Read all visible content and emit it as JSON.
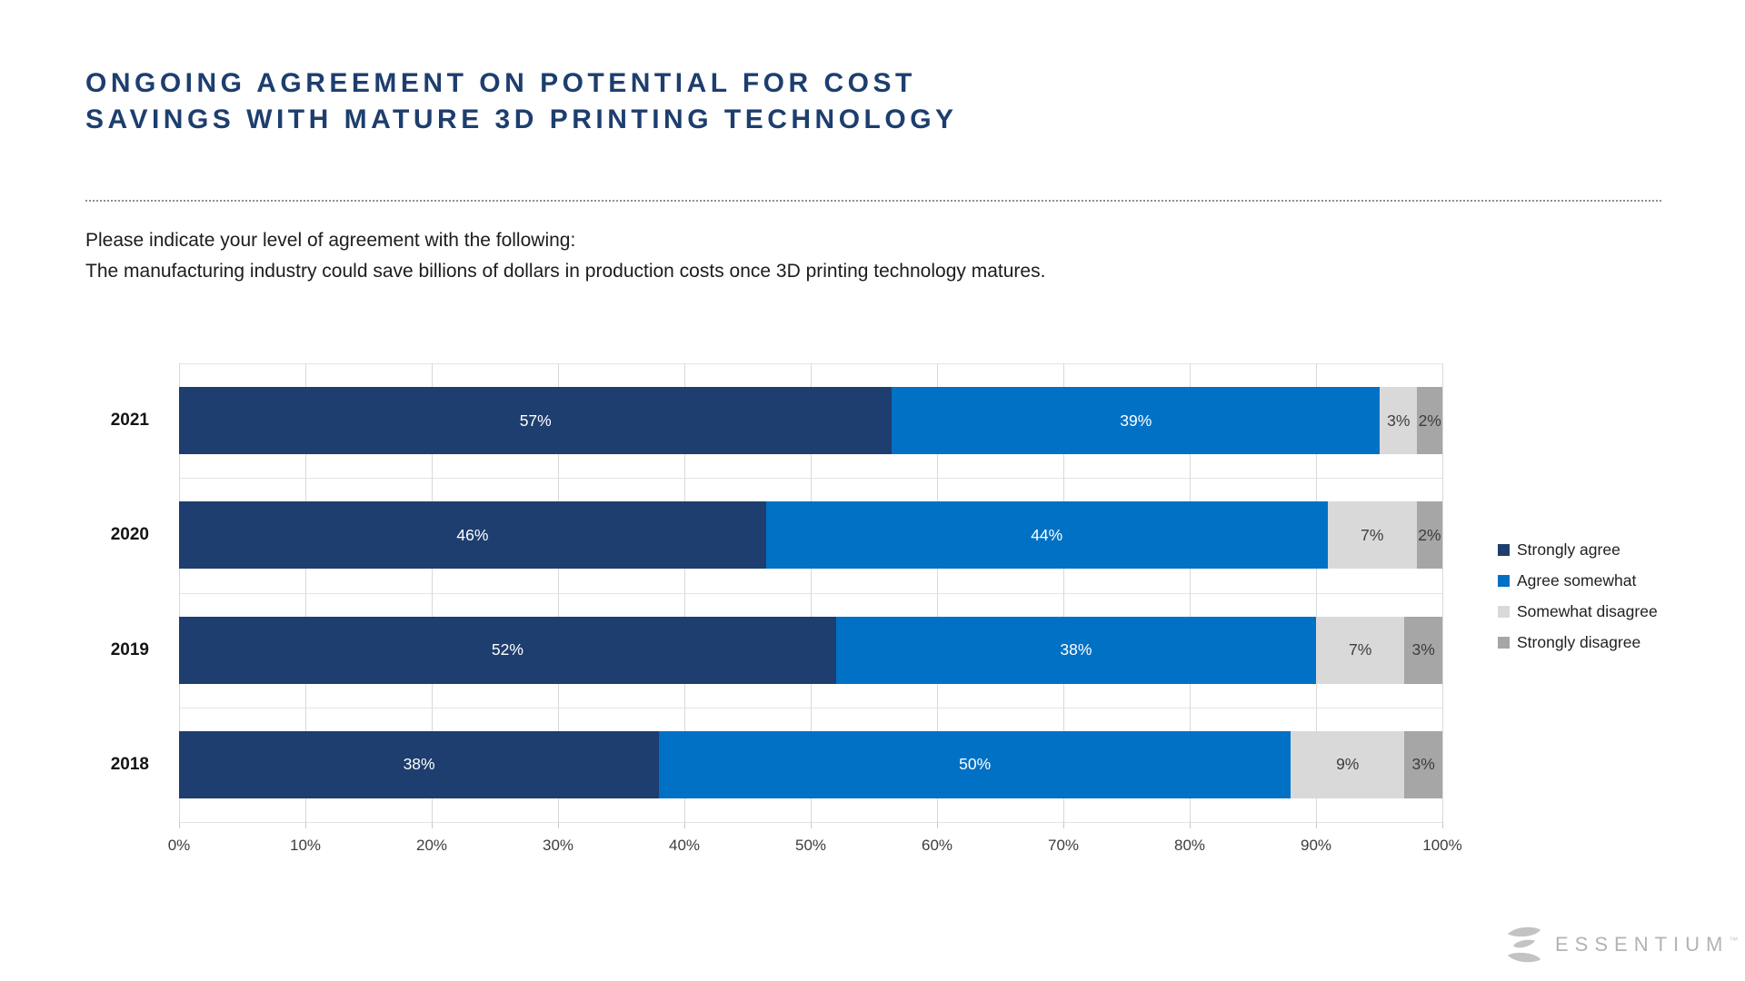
{
  "page": {
    "title_line1": "ONGOING AGREEMENT ON POTENTIAL FOR COST",
    "title_line2": "SAVINGS WITH MATURE 3D PRINTING TECHNOLOGY",
    "subtitle_line1": "Please indicate your level of agreement with the following:",
    "subtitle_line2": "The manufacturing industry could save billions of dollars in production costs once 3D printing technology matures."
  },
  "colors": {
    "title": "#1d3e6e",
    "strongly_agree": "#1d3e6e",
    "agree_somewhat": "#0071c5",
    "somewhat_disagree": "#d9d9d9",
    "strongly_disagree": "#a6a6a6",
    "gridline": "#d9d9d9",
    "logo_gray": "#b9b9b9"
  },
  "chart_data": {
    "type": "bar",
    "orientation": "horizontal",
    "stacked": true,
    "normalized_to_100": true,
    "title": "",
    "xlabel": "",
    "ylabel": "",
    "categories": [
      "2021",
      "2020",
      "2019",
      "2018"
    ],
    "series": [
      {
        "name": "Strongly agree",
        "color": "#1d3e6e",
        "label_color": "#ffffff",
        "values": [
          57,
          46,
          52,
          38
        ]
      },
      {
        "name": "Agree somewhat",
        "color": "#0071c5",
        "label_color": "#ffffff",
        "values": [
          39,
          44,
          38,
          50
        ]
      },
      {
        "name": "Somewhat disagree",
        "color": "#d9d9d9",
        "label_color": "#3d3d3d",
        "values": [
          3,
          7,
          7,
          9
        ]
      },
      {
        "name": "Strongly disagree",
        "color": "#a6a6a6",
        "label_color": "#3d3d3d",
        "values": [
          2,
          2,
          3,
          3
        ]
      }
    ],
    "value_suffix": "%",
    "x_ticks": [
      "0%",
      "10%",
      "20%",
      "30%",
      "40%",
      "50%",
      "60%",
      "70%",
      "80%",
      "90%",
      "100%"
    ],
    "xlim": [
      0,
      100
    ],
    "grid": true,
    "legend_position": "right"
  },
  "logo": {
    "text": "ESSENTIUM",
    "trademark": "™",
    "mark": "sigma-swoosh-icon"
  }
}
